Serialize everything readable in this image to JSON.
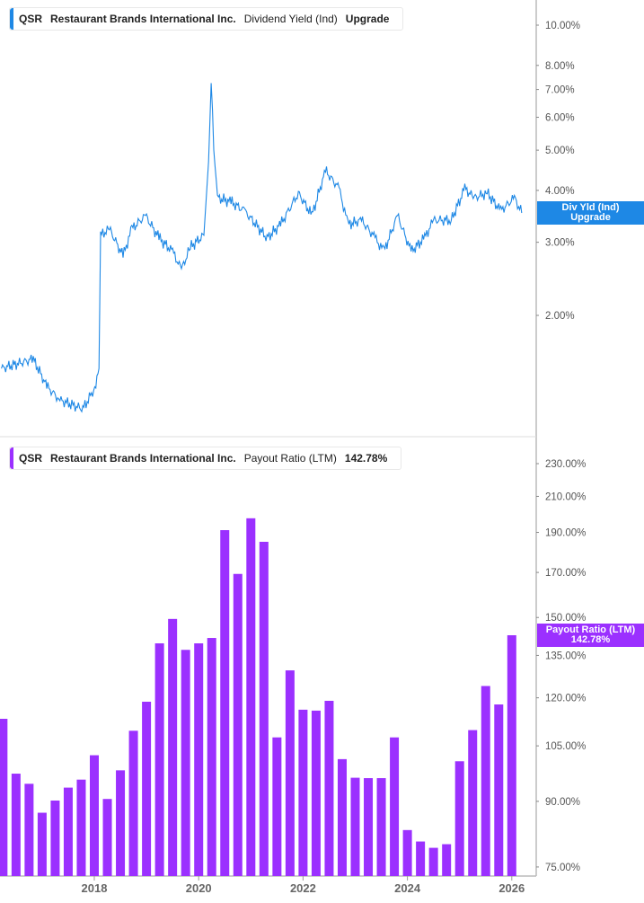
{
  "chart_data": [
    {
      "type": "line",
      "legend": {
        "ticker": "QSR",
        "company": "Restaurant Brands International Inc.",
        "metric": "Dividend Yield (Ind)",
        "value": "Upgrade"
      },
      "color": "#1e88e5",
      "y_scale": "log",
      "ylim": [
        1.15,
        11
      ],
      "yticks": [
        "10.00%",
        "8.00%",
        "7.00%",
        "6.00%",
        "5.00%",
        "4.00%",
        "3.00%",
        "2.00%"
      ],
      "ytick_values": [
        10,
        8,
        7,
        6,
        5,
        4,
        3,
        2
      ],
      "end_label": {
        "line1": "Div Yld (Ind)",
        "line2": "Upgrade"
      },
      "x": [
        2016.22,
        2016.83,
        2017.09,
        2017.34,
        2017.78,
        2018.03,
        2018.09,
        2018.12,
        2018.29,
        2018.55,
        2018.72,
        2018.98,
        2019.24,
        2019.5,
        2019.67,
        2019.84,
        2020.1,
        2020.19,
        2020.24,
        2020.29,
        2020.36,
        2020.62,
        2020.88,
        2021.31,
        2021.57,
        2021.91,
        2022.17,
        2022.43,
        2022.69,
        2022.86,
        2023.12,
        2023.38,
        2023.55,
        2023.81,
        2024.07,
        2024.33,
        2024.5,
        2024.84,
        2025.1,
        2025.28,
        2025.53,
        2025.79,
        2026.05,
        2026.19
      ],
      "y": [
        1.49,
        1.57,
        1.35,
        1.25,
        1.19,
        1.35,
        1.49,
        3.12,
        3.23,
        2.78,
        3.23,
        3.48,
        3.07,
        2.85,
        2.58,
        2.92,
        3.12,
        4.69,
        7.34,
        4.93,
        3.84,
        3.75,
        3.57,
        3.07,
        3.31,
        3.94,
        3.48,
        4.46,
        4.04,
        3.31,
        3.39,
        3.07,
        2.85,
        3.48,
        2.85,
        3.07,
        3.39,
        3.39,
        4.04,
        3.84,
        3.94,
        3.57,
        3.84,
        3.53
      ]
    },
    {
      "type": "bar",
      "legend": {
        "ticker": "QSR",
        "company": "Restaurant Brands International Inc.",
        "metric": "Payout Ratio (LTM)",
        "value": "142.78%"
      },
      "color": "#9b30ff",
      "y_scale": "log",
      "ylim": [
        75,
        240
      ],
      "yticks": [
        "230.00%",
        "210.00%",
        "190.00%",
        "170.00%",
        "150.00%",
        "135.00%",
        "120.00%",
        "105.00%",
        "90.00%",
        "75.00%"
      ],
      "ytick_values": [
        230,
        210,
        190,
        170,
        150,
        135,
        120,
        105,
        90,
        75
      ],
      "end_label": {
        "line1": "Payout Ratio (LTM)",
        "line2": "142.78%"
      },
      "x_start": 2016.25,
      "x_step": 0.25,
      "values": [
        113.2,
        97.2,
        94.5,
        87.2,
        90.2,
        93.5,
        95.6,
        102.3,
        90.6,
        98.1,
        109.5,
        118.7,
        139.6,
        149.4,
        137.1,
        139.6,
        141.7,
        191.2,
        169.3,
        197.6,
        185.1,
        107.5,
        129.5,
        116.1,
        115.8,
        119.0,
        101.2,
        96.1,
        96.0,
        96.0,
        107.5,
        83.1,
        80.5,
        79.1,
        79.9,
        100.6,
        109.7,
        124.0,
        117.8,
        142.78
      ]
    }
  ],
  "x_axis": {
    "ticks": [
      "2018",
      "2020",
      "2022",
      "2024",
      "2026"
    ],
    "tick_values": [
      2018,
      2020,
      2022,
      2024,
      2026
    ]
  }
}
